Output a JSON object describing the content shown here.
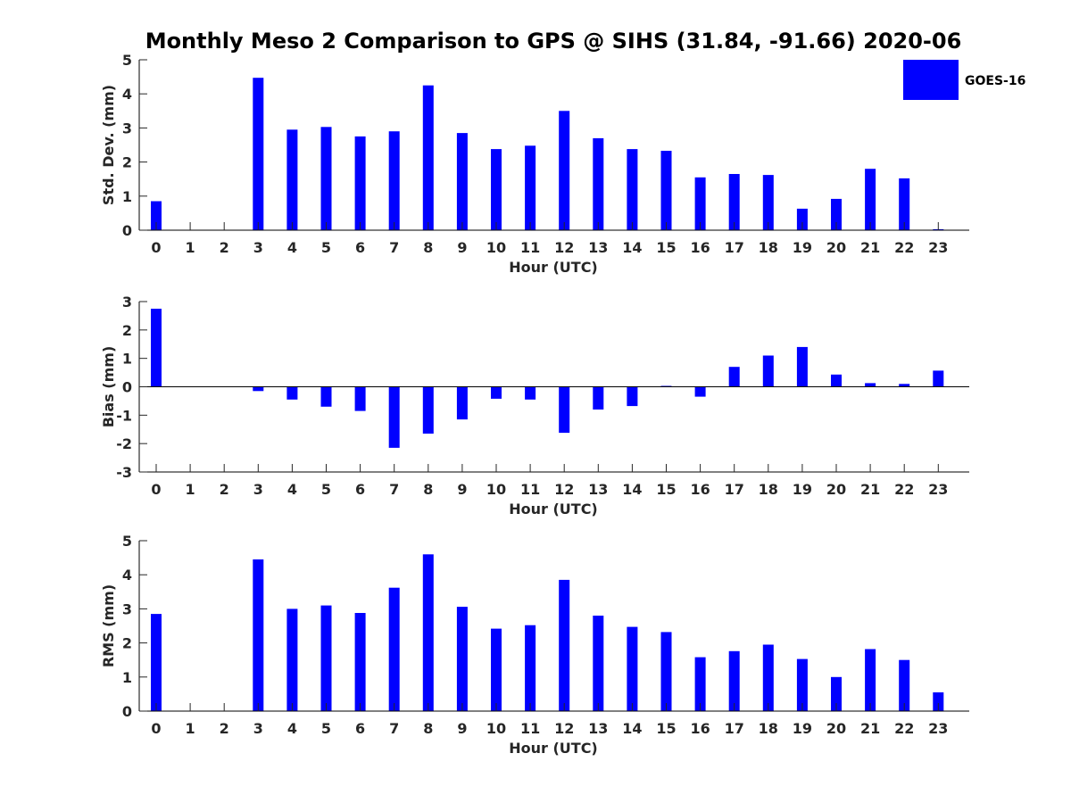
{
  "title": "Monthly Meso 2 Comparison to GPS @ SIHS (31.84, -91.66) 2020-06",
  "legend": {
    "label": "GOES-16",
    "position": "top-right"
  },
  "colors": {
    "bar": "#0000ff",
    "axis": "#000000",
    "text": "#262626"
  },
  "chart_data": [
    {
      "type": "bar",
      "categories": [
        "0",
        "1",
        "2",
        "3",
        "4",
        "5",
        "6",
        "7",
        "8",
        "9",
        "10",
        "11",
        "12",
        "13",
        "14",
        "15",
        "16",
        "17",
        "18",
        "19",
        "20",
        "21",
        "22",
        "23"
      ],
      "series": [
        {
          "name": "GOES-16",
          "values": [
            0.85,
            0,
            0,
            4.47,
            2.95,
            3.03,
            2.75,
            2.9,
            4.25,
            2.85,
            2.38,
            2.48,
            3.5,
            2.7,
            2.38,
            2.33,
            1.55,
            1.65,
            1.62,
            0.63,
            0.92,
            1.8,
            1.52,
            0.03
          ]
        }
      ],
      "xlabel": "Hour (UTC)",
      "ylabel": "Std. Dev. (mm)",
      "ylim": [
        0,
        5
      ],
      "yticks": [
        "0",
        "1",
        "2",
        "3",
        "4",
        "5"
      ],
      "grid": false
    },
    {
      "type": "bar",
      "categories": [
        "0",
        "1",
        "2",
        "3",
        "4",
        "5",
        "6",
        "7",
        "8",
        "9",
        "10",
        "11",
        "12",
        "13",
        "14",
        "15",
        "16",
        "17",
        "18",
        "19",
        "20",
        "21",
        "22",
        "23"
      ],
      "series": [
        {
          "name": "GOES-16",
          "values": [
            2.75,
            0,
            0,
            -0.15,
            -0.45,
            -0.7,
            -0.85,
            -2.15,
            -1.65,
            -1.15,
            -0.42,
            -0.45,
            -1.62,
            -0.8,
            -0.68,
            0.03,
            -0.35,
            0.7,
            1.1,
            1.4,
            0.43,
            0.13,
            0.1,
            0.57
          ]
        }
      ],
      "xlabel": "Hour (UTC)",
      "ylabel": "Bias (mm)",
      "ylim": [
        -3,
        3
      ],
      "yticks": [
        "-3",
        "-2",
        "-1",
        "0",
        "1",
        "2",
        "3"
      ],
      "grid": false
    },
    {
      "type": "bar",
      "categories": [
        "0",
        "1",
        "2",
        "3",
        "4",
        "5",
        "6",
        "7",
        "8",
        "9",
        "10",
        "11",
        "12",
        "13",
        "14",
        "15",
        "16",
        "17",
        "18",
        "19",
        "20",
        "21",
        "22",
        "23"
      ],
      "series": [
        {
          "name": "GOES-16",
          "values": [
            2.85,
            0,
            0,
            4.45,
            3.0,
            3.1,
            2.88,
            3.62,
            4.6,
            3.06,
            2.42,
            2.52,
            3.85,
            2.8,
            2.47,
            2.32,
            1.58,
            1.76,
            1.95,
            1.53,
            1.0,
            1.82,
            1.5,
            0.55
          ]
        }
      ],
      "xlabel": "Hour (UTC)",
      "ylabel": "RMS (mm)",
      "ylim": [
        0,
        5
      ],
      "yticks": [
        "0",
        "1",
        "2",
        "3",
        "4",
        "5"
      ],
      "grid": false
    }
  ]
}
